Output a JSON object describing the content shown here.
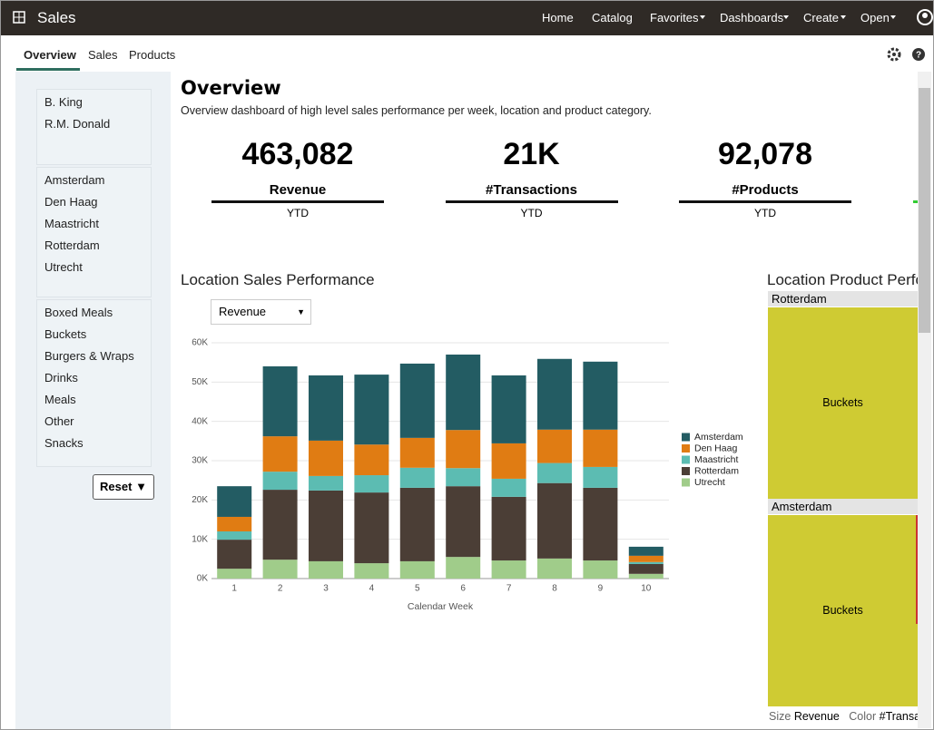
{
  "app": {
    "title": "Sales"
  },
  "nav": [
    "Home",
    "Catalog",
    "Favorites",
    "Dashboards",
    "Create",
    "Open"
  ],
  "tabs": [
    "Overview",
    "Sales",
    "Products"
  ],
  "filters": {
    "people": [
      "B. King",
      "R.M. Donald"
    ],
    "locations": [
      "Amsterdam",
      "Den Haag",
      "Maastricht",
      "Rotterdam",
      "Utrecht"
    ],
    "categories": [
      "Boxed Meals",
      "Buckets",
      "Burgers & Wraps",
      "Drinks",
      "Meals",
      "Other",
      "Snacks"
    ],
    "reset": "Reset"
  },
  "header": {
    "title": "Overview",
    "subtitle": "Overview dashboard of high level sales performance per week, location and product category."
  },
  "kpis": [
    {
      "value": "463,082",
      "label": "Revenue",
      "period": "YTD"
    },
    {
      "value": "21K",
      "label": "#Transactions",
      "period": "YTD"
    },
    {
      "value": "92,078",
      "label": "#Products",
      "period": "YTD"
    }
  ],
  "location_chart": {
    "type": "bar",
    "stacked": true,
    "title": "Location Sales Performance",
    "measure": "Revenue",
    "x_label": "Calendar Week",
    "categories": [
      "1",
      "2",
      "3",
      "4",
      "5",
      "6",
      "7",
      "8",
      "9",
      "10"
    ],
    "series": [
      {
        "name": "Amsterdam",
        "color": "#235c63",
        "values": [
          7800,
          17800,
          16600,
          17800,
          18900,
          19200,
          17300,
          18000,
          17300,
          2300
        ]
      },
      {
        "name": "Den Haag",
        "color": "#e07c13",
        "values": [
          3700,
          9000,
          9000,
          7800,
          7600,
          9700,
          9000,
          8500,
          9500,
          1600
        ]
      },
      {
        "name": "Maastricht",
        "color": "#5cbcb2",
        "values": [
          2100,
          4600,
          3700,
          4400,
          5100,
          4600,
          4600,
          5100,
          5300,
          500
        ]
      },
      {
        "name": "Rotterdam",
        "color": "#4b3e36",
        "values": [
          7400,
          17800,
          18000,
          18000,
          18700,
          18000,
          16200,
          19200,
          18500,
          2500
        ]
      },
      {
        "name": "Utrecht",
        "color": "#a0cc8a",
        "values": [
          2500,
          4800,
          4400,
          3900,
          4400,
          5500,
          4600,
          5100,
          4600,
          1200
        ]
      }
    ],
    "ylim": [
      0,
      60000
    ],
    "yticks": [
      {
        "value": 0,
        "label": "0K"
      },
      {
        "value": 10000,
        "label": "10K"
      },
      {
        "value": 20000,
        "label": "20K"
      },
      {
        "value": 30000,
        "label": "30K"
      },
      {
        "value": 40000,
        "label": "40K"
      },
      {
        "value": 50000,
        "label": "50K"
      },
      {
        "value": 60000,
        "label": "60K"
      }
    ],
    "grid": true
  },
  "treemap": {
    "title": "Location Product Perfo",
    "groups": [
      {
        "name": "Rotterdam",
        "label": "Buckets"
      },
      {
        "name": "Amsterdam",
        "label": "Buckets"
      }
    ],
    "size_label": "Size",
    "size": "Revenue",
    "color_label": "Color",
    "color": "#Transa"
  }
}
